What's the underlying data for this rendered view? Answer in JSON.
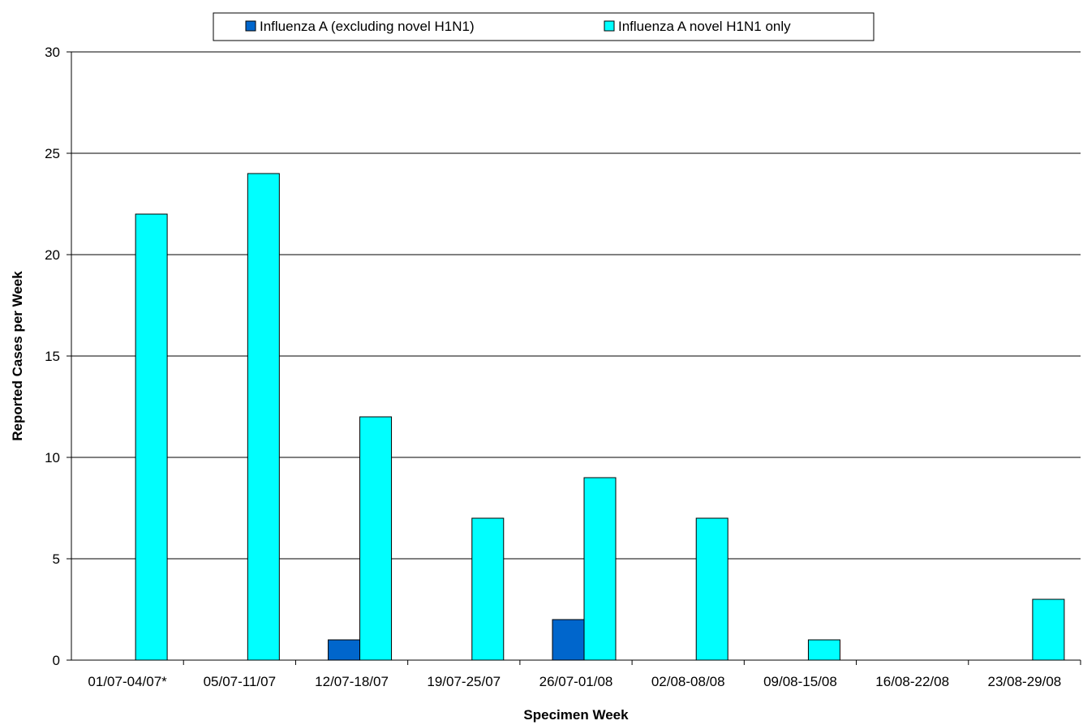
{
  "chart_data": {
    "type": "bar",
    "title": "",
    "xlabel": "Specimen Week",
    "ylabel": "Reported Cases per Week",
    "ylim": [
      0,
      30
    ],
    "yticks": [
      0,
      5,
      10,
      15,
      20,
      25,
      30
    ],
    "grid": "horizontal",
    "legend": "top",
    "categories": [
      "01/07-04/07*",
      "05/07-11/07",
      "12/07-18/07",
      "19/07-25/07",
      "26/07-01/08",
      "02/08-08/08",
      "09/08-15/08",
      "16/08-22/08",
      "23/08-29/08"
    ],
    "series": [
      {
        "name": "Influenza A (excluding novel H1N1)",
        "color": "#0066CC",
        "values": [
          0,
          0,
          1,
          0,
          2,
          0,
          0,
          0,
          0
        ]
      },
      {
        "name": "Influenza A novel H1N1 only",
        "color": "#00FFFF",
        "values": [
          22,
          24,
          12,
          7,
          9,
          7,
          1,
          0,
          3
        ]
      }
    ]
  }
}
